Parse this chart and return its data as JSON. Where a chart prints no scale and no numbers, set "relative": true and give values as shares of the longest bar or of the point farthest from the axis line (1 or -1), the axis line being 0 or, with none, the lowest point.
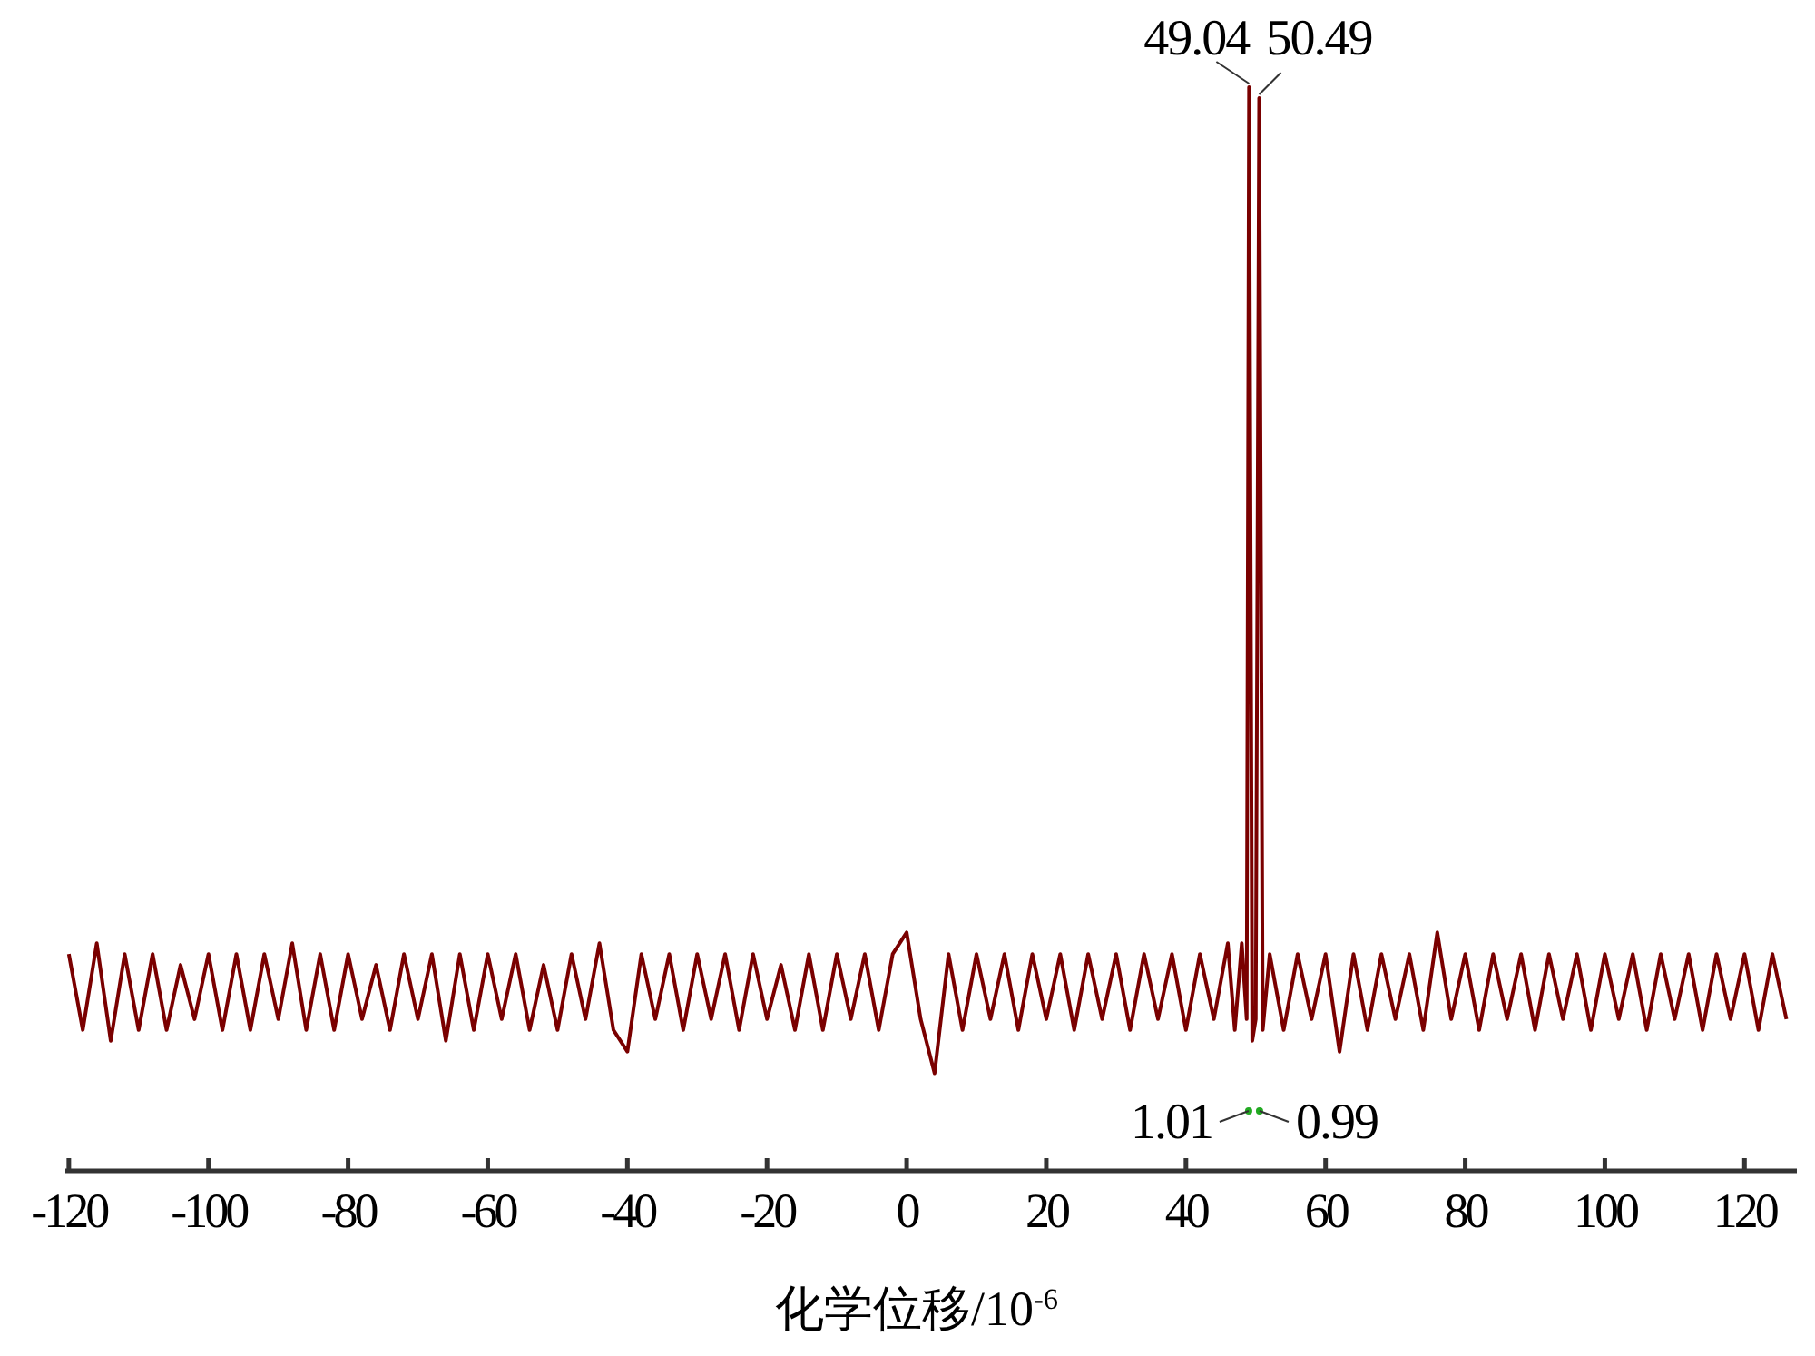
{
  "chart_data": {
    "type": "line",
    "relative": true,
    "xlabel": "化学位移/10$^{-6}$",
    "xlim": [
      -120.5,
      127.5
    ],
    "xticks": [
      -120,
      -100,
      -80,
      -60,
      -40,
      -20,
      0,
      20,
      40,
      60,
      80,
      100,
      120
    ],
    "grid": false,
    "marker": "none",
    "line_style": "solid",
    "annotations": [
      {
        "text": "49.04",
        "x": 49.04,
        "y": 1.0
      },
      {
        "text": "50.49",
        "x": 50.49,
        "y": 0.99
      },
      "1.01",
      "0.99"
    ],
    "series": [
      {
        "color": "#7a0000",
        "x": [
          -120,
          -118,
          -116,
          -114,
          -112,
          -110,
          -108,
          -106,
          -104,
          -102,
          -100,
          -98,
          -96,
          -94,
          -92,
          -90,
          -88,
          -86,
          -84,
          -82,
          -80,
          -78,
          -76,
          -74,
          -72,
          -70,
          -68,
          -66,
          -64,
          -62,
          -60,
          -58,
          -56,
          -54,
          -52,
          -50,
          -48,
          -46,
          -44,
          -42,
          -40,
          -38,
          -36,
          -34,
          -32,
          -30,
          -28,
          -26,
          -24,
          -22,
          -20,
          -18,
          -16,
          -14,
          -12,
          -10,
          -8,
          -6,
          -4,
          -2,
          0,
          2,
          4,
          6,
          8,
          10,
          12,
          14,
          16,
          18,
          20,
          22,
          24,
          26,
          28,
          30,
          32,
          34,
          36,
          38,
          40,
          42,
          44,
          46,
          47,
          48,
          48.7,
          49.04,
          49.5,
          50,
          50.49,
          51,
          52,
          54,
          56,
          58,
          60,
          62,
          64,
          66,
          68,
          70,
          72,
          74,
          76,
          78,
          80,
          82,
          84,
          86,
          88,
          90,
          92,
          94,
          96,
          98,
          100,
          102,
          104,
          106,
          108,
          110,
          112,
          114,
          116,
          118,
          120,
          122,
          124,
          126
        ],
        "values": [
          0.2,
          0.13,
          0.21,
          0.12,
          0.2,
          0.13,
          0.2,
          0.13,
          0.19,
          0.14,
          0.2,
          0.13,
          0.2,
          0.13,
          0.2,
          0.14,
          0.21,
          0.13,
          0.2,
          0.13,
          0.2,
          0.14,
          0.19,
          0.13,
          0.2,
          0.14,
          0.2,
          0.12,
          0.2,
          0.13,
          0.2,
          0.14,
          0.2,
          0.13,
          0.19,
          0.13,
          0.2,
          0.14,
          0.21,
          0.13,
          0.11,
          0.2,
          0.14,
          0.2,
          0.13,
          0.2,
          0.14,
          0.2,
          0.13,
          0.2,
          0.14,
          0.19,
          0.13,
          0.2,
          0.13,
          0.2,
          0.14,
          0.2,
          0.13,
          0.2,
          0.22,
          0.14,
          0.09,
          0.2,
          0.13,
          0.2,
          0.14,
          0.2,
          0.13,
          0.2,
          0.14,
          0.2,
          0.13,
          0.2,
          0.14,
          0.2,
          0.13,
          0.2,
          0.14,
          0.2,
          0.13,
          0.2,
          0.14,
          0.21,
          0.13,
          0.21,
          0.14,
          1.0,
          0.12,
          0.14,
          0.99,
          0.13,
          0.2,
          0.13,
          0.2,
          0.14,
          0.2,
          0.11,
          0.2,
          0.13,
          0.2,
          0.14,
          0.2,
          0.13,
          0.22,
          0.14,
          0.2,
          0.13,
          0.2,
          0.14,
          0.2,
          0.13,
          0.2,
          0.14,
          0.2,
          0.13,
          0.2,
          0.14,
          0.2,
          0.13,
          0.2,
          0.14,
          0.2,
          0.13,
          0.2,
          0.14,
          0.2,
          0.13,
          0.2,
          0.14
        ]
      }
    ]
  }
}
